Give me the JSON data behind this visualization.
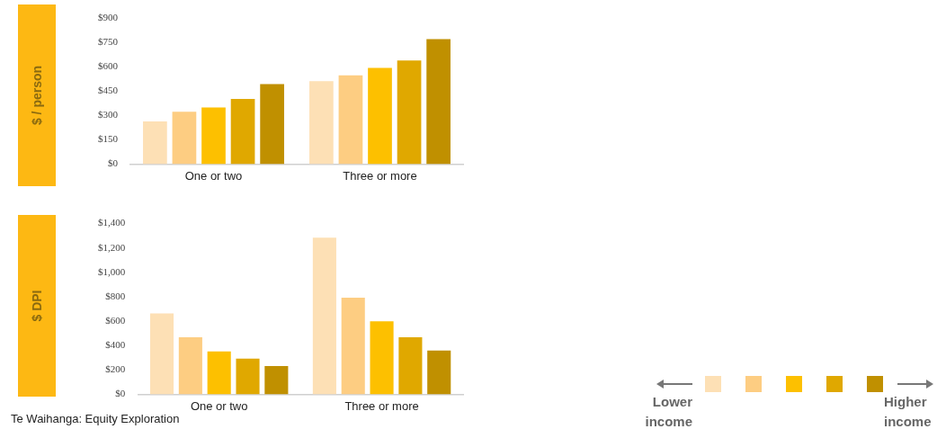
{
  "chart_data": [
    {
      "type": "bar",
      "ylabel": "$ / person",
      "categories": [
        "One or two",
        "Three or more"
      ],
      "series": [
        {
          "color": "#fde0b5",
          "values": [
            263,
            512
          ]
        },
        {
          "color": "#fdcd82",
          "values": [
            323,
            549
          ]
        },
        {
          "color": "#fdc000",
          "values": [
            350,
            595
          ]
        },
        {
          "color": "#e0a800",
          "values": [
            403,
            640
          ]
        },
        {
          "color": "#c09000",
          "values": [
            494,
            772
          ]
        }
      ],
      "ylim": [
        0,
        900
      ],
      "yticks": [
        {
          "value": 0,
          "label": "$0"
        },
        {
          "value": 150,
          "label": "$150"
        },
        {
          "value": 300,
          "label": "$300"
        },
        {
          "value": 450,
          "label": "$450"
        },
        {
          "value": 600,
          "label": "$600"
        },
        {
          "value": 750,
          "label": "$750"
        },
        {
          "value": 900,
          "label": "$900"
        }
      ],
      "grid": false,
      "legend": false
    },
    {
      "type": "bar",
      "ylabel": "$ DPI",
      "categories": [
        "One or two",
        "Three or more"
      ],
      "series": [
        {
          "color": "#fde0b5",
          "values": [
            664,
            1284
          ]
        },
        {
          "color": "#fdcd82",
          "values": [
            467,
            792
          ]
        },
        {
          "color": "#fdc000",
          "values": [
            351,
            599
          ]
        },
        {
          "color": "#e0a800",
          "values": [
            293,
            467
          ]
        },
        {
          "color": "#c09000",
          "values": [
            232,
            358
          ]
        }
      ],
      "ylim": [
        0,
        1400
      ],
      "yticks": [
        {
          "value": 0,
          "label": "$0"
        },
        {
          "value": 200,
          "label": "$200"
        },
        {
          "value": 400,
          "label": "$400"
        },
        {
          "value": 600,
          "label": "$600"
        },
        {
          "value": 800,
          "label": "$800"
        },
        {
          "value": 1000,
          "label": "$1,000"
        },
        {
          "value": 1200,
          "label": "$1,200"
        },
        {
          "value": 1400,
          "label": "$1,400"
        }
      ],
      "grid": false,
      "legend": false,
      "annotations": [
        "Te Waihanga: Equity Exploration",
        "Lower income",
        "Higher income"
      ]
    }
  ]
}
